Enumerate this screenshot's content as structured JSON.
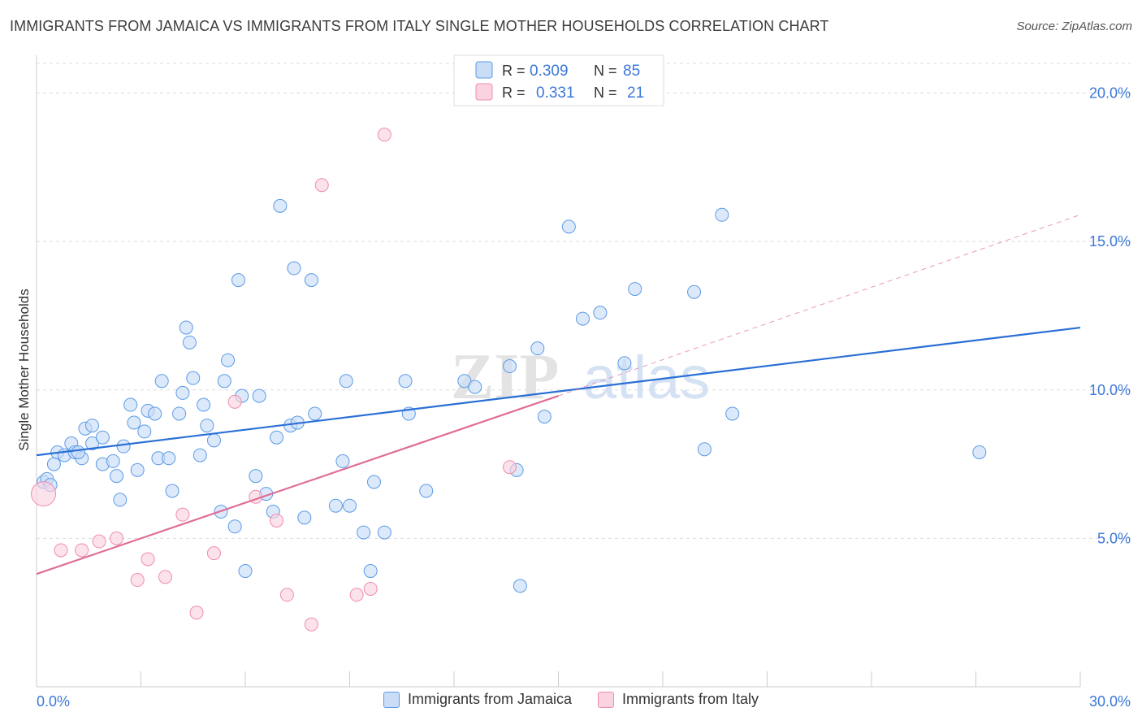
{
  "header": {
    "title": "IMMIGRANTS FROM JAMAICA VS IMMIGRANTS FROM ITALY SINGLE MOTHER HOUSEHOLDS CORRELATION CHART",
    "source": "Source: ZipAtlas.com"
  },
  "watermark": {
    "zip": "ZIP",
    "atlas": "atlas"
  },
  "legend_box": {
    "rows": [
      {
        "r_label": "R =",
        "r_value": "0.309",
        "n_label": "N =",
        "n_value": "85"
      },
      {
        "r_label": "R =",
        "r_value": "0.331",
        "n_label": "N =",
        "n_value": "21"
      }
    ]
  },
  "chart_data": {
    "type": "scatter",
    "title": "IMMIGRANTS FROM JAMAICA VS IMMIGRANTS FROM ITALY SINGLE MOTHER HOUSEHOLDS CORRELATION CHART",
    "xlabel": "",
    "ylabel": "Single Mother Households",
    "xlim": [
      0,
      30
    ],
    "ylim": [
      0,
      21
    ],
    "x_tick_labels": [
      "0.0%",
      "30.0%"
    ],
    "y_ticks": [
      5,
      10,
      15,
      20
    ],
    "y_tick_labels": [
      "5.0%",
      "10.0%",
      "15.0%",
      "20.0%"
    ],
    "grid": "horizontal dashed",
    "legend_position": "bottom",
    "colors": {
      "jamaica": "#5b9be6",
      "italy": "#f08caf",
      "jamaica_line": "#2a6fd6",
      "italy_line": "#e06d97",
      "tick_text": "#3c78d8"
    },
    "series": [
      {
        "name": "Immigrants from Jamaica",
        "color": "#5b9be6",
        "trend": {
          "x": [
            0,
            30
          ],
          "y": [
            7.8,
            12.1
          ]
        },
        "points": [
          [
            0.2,
            6.9
          ],
          [
            0.3,
            7.0
          ],
          [
            0.5,
            7.5
          ],
          [
            0.6,
            7.9
          ],
          [
            0.8,
            7.8
          ],
          [
            1.0,
            8.2
          ],
          [
            1.1,
            7.9
          ],
          [
            1.3,
            7.7
          ],
          [
            1.4,
            8.7
          ],
          [
            1.6,
            8.8
          ],
          [
            1.6,
            8.2
          ],
          [
            1.9,
            8.4
          ],
          [
            1.9,
            7.5
          ],
          [
            2.2,
            7.6
          ],
          [
            2.3,
            7.1
          ],
          [
            2.4,
            6.3
          ],
          [
            2.5,
            8.1
          ],
          [
            2.7,
            9.5
          ],
          [
            2.8,
            8.9
          ],
          [
            2.9,
            7.3
          ],
          [
            3.1,
            8.6
          ],
          [
            3.2,
            9.3
          ],
          [
            3.4,
            9.2
          ],
          [
            3.5,
            7.7
          ],
          [
            3.6,
            10.3
          ],
          [
            3.8,
            7.7
          ],
          [
            3.9,
            6.6
          ],
          [
            4.1,
            9.2
          ],
          [
            4.2,
            9.9
          ],
          [
            4.3,
            12.1
          ],
          [
            4.4,
            11.6
          ],
          [
            4.5,
            10.4
          ],
          [
            4.7,
            7.8
          ],
          [
            4.8,
            9.5
          ],
          [
            4.9,
            8.8
          ],
          [
            5.1,
            8.3
          ],
          [
            5.3,
            5.9
          ],
          [
            5.4,
            10.3
          ],
          [
            5.5,
            11.0
          ],
          [
            5.7,
            5.4
          ],
          [
            5.8,
            13.7
          ],
          [
            5.9,
            9.8
          ],
          [
            6.0,
            3.9
          ],
          [
            6.3,
            7.1
          ],
          [
            6.4,
            9.8
          ],
          [
            6.6,
            6.5
          ],
          [
            6.8,
            5.9
          ],
          [
            6.9,
            8.4
          ],
          [
            7.0,
            16.2
          ],
          [
            7.3,
            8.8
          ],
          [
            7.4,
            14.1
          ],
          [
            7.5,
            8.9
          ],
          [
            7.7,
            5.7
          ],
          [
            7.9,
            13.7
          ],
          [
            8.0,
            9.2
          ],
          [
            8.6,
            6.1
          ],
          [
            8.8,
            7.6
          ],
          [
            8.9,
            10.3
          ],
          [
            9.0,
            6.1
          ],
          [
            9.4,
            5.2
          ],
          [
            9.6,
            3.9
          ],
          [
            9.7,
            6.9
          ],
          [
            10.0,
            5.2
          ],
          [
            10.6,
            10.3
          ],
          [
            10.7,
            9.2
          ],
          [
            11.2,
            6.6
          ],
          [
            12.3,
            10.3
          ],
          [
            12.6,
            10.1
          ],
          [
            13.6,
            10.8
          ],
          [
            13.8,
            7.3
          ],
          [
            13.9,
            3.4
          ],
          [
            14.4,
            11.4
          ],
          [
            14.6,
            9.1
          ],
          [
            15.3,
            15.5
          ],
          [
            15.7,
            12.4
          ],
          [
            16.2,
            12.6
          ],
          [
            16.9,
            10.9
          ],
          [
            17.2,
            13.4
          ],
          [
            18.9,
            13.3
          ],
          [
            19.2,
            8.0
          ],
          [
            19.7,
            15.9
          ],
          [
            20.0,
            9.2
          ],
          [
            27.1,
            7.9
          ],
          [
            0.4,
            6.8
          ],
          [
            1.2,
            7.9
          ]
        ]
      },
      {
        "name": "Immigrants from Italy",
        "color": "#f08caf",
        "trend": {
          "x": [
            0,
            15.0
          ],
          "y": [
            3.8,
            9.8
          ]
        },
        "trend_extension": {
          "x": [
            15.0,
            30
          ],
          "y": [
            9.8,
            15.9
          ]
        },
        "points": [
          [
            0.2,
            6.5
          ],
          [
            0.7,
            4.6
          ],
          [
            1.3,
            4.6
          ],
          [
            1.8,
            4.9
          ],
          [
            2.3,
            5.0
          ],
          [
            2.9,
            3.6
          ],
          [
            3.2,
            4.3
          ],
          [
            3.7,
            3.7
          ],
          [
            4.2,
            5.8
          ],
          [
            4.6,
            2.5
          ],
          [
            5.1,
            4.5
          ],
          [
            5.7,
            9.6
          ],
          [
            6.3,
            6.4
          ],
          [
            6.9,
            5.6
          ],
          [
            7.2,
            3.1
          ],
          [
            7.9,
            2.1
          ],
          [
            8.2,
            16.9
          ],
          [
            9.2,
            3.1
          ],
          [
            9.6,
            3.3
          ],
          [
            10.0,
            18.6
          ],
          [
            13.6,
            7.4
          ]
        ]
      }
    ]
  },
  "legend_bottom": {
    "items": [
      {
        "label": "Immigrants from Jamaica",
        "fill": "#c9ddf7",
        "stroke": "#5b9be6"
      },
      {
        "label": "Immigrants from Italy",
        "fill": "#fbd3e0",
        "stroke": "#f08caf"
      }
    ]
  }
}
